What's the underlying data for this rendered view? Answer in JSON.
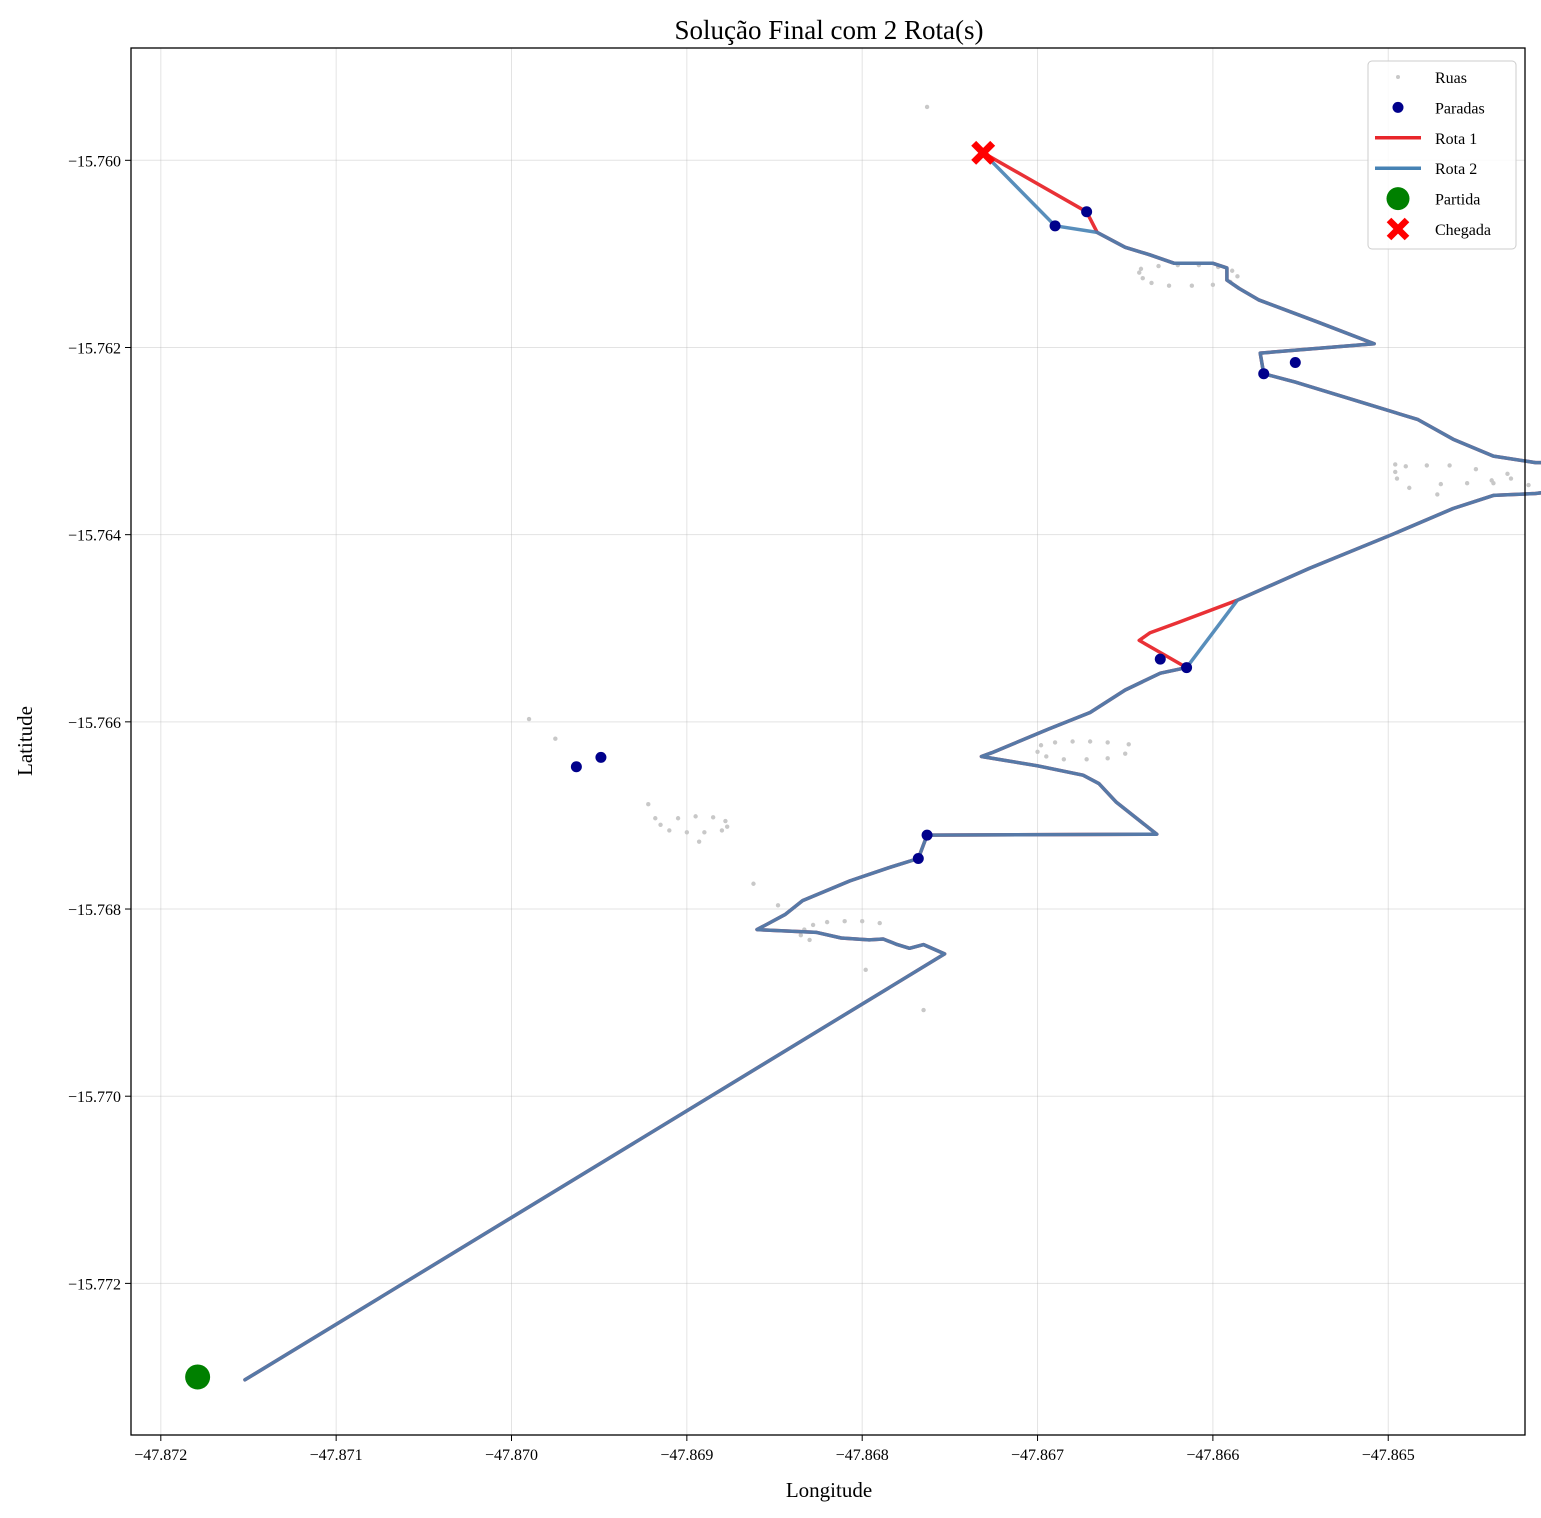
{
  "chart_data": {
    "type": "scatter",
    "title": "Solução Final com 2 Rota(s)",
    "xlabel": "Longitude",
    "ylabel": "Latitude",
    "xlim": [
      -47.87217,
      -47.86422
    ],
    "ylim": [
      -15.77362,
      -15.7588
    ],
    "xticks": [
      -47.872,
      -47.871,
      -47.87,
      -47.869,
      -47.868,
      -47.867,
      -47.866,
      -47.865
    ],
    "xtick_labels": [
      "−47.872",
      "−47.871",
      "−47.870",
      "−47.869",
      "−47.868",
      "−47.867",
      "−47.866",
      "−47.865"
    ],
    "yticks": [
      -15.76,
      -15.762,
      -15.764,
      -15.766,
      -15.768,
      -15.77,
      -15.772
    ],
    "ytick_labels": [
      "−15.760",
      "−15.762",
      "−15.764",
      "−15.766",
      "−15.768",
      "−15.770",
      "−15.772"
    ],
    "grid": true,
    "legend_position": "top-right",
    "legend": [
      {
        "label": "Ruas",
        "kind": "small-dot",
        "color": "#c8c8c8"
      },
      {
        "label": "Paradas",
        "kind": "dot",
        "color": "#00008b"
      },
      {
        "label": "Rota 1",
        "kind": "line",
        "color": "#e8262b"
      },
      {
        "label": "Rota 2",
        "kind": "line",
        "color": "#4682b4"
      },
      {
        "label": "Partida",
        "kind": "big-dot",
        "color": "#008000"
      },
      {
        "label": "Chegada",
        "kind": "x-marker",
        "color": "#ff0000"
      }
    ],
    "series": [
      {
        "name": "Ruas",
        "type": "scatter",
        "color": "#c8c8c8",
        "points": [
          [
            -47.86763,
            -15.75943
          ],
          [
            -47.86641,
            -15.76116
          ],
          [
            -47.86631,
            -15.76113
          ],
          [
            -47.8662,
            -15.76112
          ],
          [
            -47.86608,
            -15.76112
          ],
          [
            -47.86597,
            -15.76114
          ],
          [
            -47.86589,
            -15.76118
          ],
          [
            -47.86586,
            -15.76124
          ],
          [
            -47.8659,
            -15.7613
          ],
          [
            -47.866,
            -15.76133
          ],
          [
            -47.86612,
            -15.76134
          ],
          [
            -47.86625,
            -15.76134
          ],
          [
            -47.86635,
            -15.76131
          ],
          [
            -47.8664,
            -15.76126
          ],
          [
            -47.86642,
            -15.7612
          ],
          [
            -47.86496,
            -15.76325
          ],
          [
            -47.8649,
            -15.76327
          ],
          [
            -47.86478,
            -15.76326
          ],
          [
            -47.86465,
            -15.76326
          ],
          [
            -47.8645,
            -15.7633
          ],
          [
            -47.86432,
            -15.76335
          ],
          [
            -47.8643,
            -15.7634
          ],
          [
            -47.86455,
            -15.76345
          ],
          [
            -47.8647,
            -15.76346
          ],
          [
            -47.86488,
            -15.7635
          ],
          [
            -47.86495,
            -15.7634
          ],
          [
            -47.86496,
            -15.76333
          ],
          [
            -47.86472,
            -15.76357
          ],
          [
            -47.8644,
            -15.76345
          ],
          [
            -47.8642,
            -15.76347
          ],
          [
            -47.86405,
            -15.76345
          ],
          [
            -47.8638,
            -15.76342
          ],
          [
            -47.8699,
            -15.76597
          ],
          [
            -47.86975,
            -15.76618
          ],
          [
            -47.86698,
            -15.76625
          ],
          [
            -47.8669,
            -15.76622
          ],
          [
            -47.8668,
            -15.76621
          ],
          [
            -47.8667,
            -15.76621
          ],
          [
            -47.8666,
            -15.76622
          ],
          [
            -47.86648,
            -15.76624
          ],
          [
            -47.867,
            -15.76632
          ],
          [
            -47.86695,
            -15.76637
          ],
          [
            -47.86685,
            -15.7664
          ],
          [
            -47.86672,
            -15.7664
          ],
          [
            -47.8666,
            -15.76639
          ],
          [
            -47.8665,
            -15.76634
          ],
          [
            -47.86922,
            -15.76688
          ],
          [
            -47.86918,
            -15.76703
          ],
          [
            -47.86915,
            -15.7671
          ],
          [
            -47.86905,
            -15.76703
          ],
          [
            -47.86895,
            -15.76701
          ],
          [
            -47.86885,
            -15.76702
          ],
          [
            -47.86878,
            -15.76706
          ],
          [
            -47.86877,
            -15.76712
          ],
          [
            -47.8688,
            -15.76716
          ],
          [
            -47.8689,
            -15.76718
          ],
          [
            -47.869,
            -15.76718
          ],
          [
            -47.8691,
            -15.76716
          ],
          [
            -47.86893,
            -15.76728
          ],
          [
            -47.86862,
            -15.76773
          ],
          [
            -47.86848,
            -15.76796
          ],
          [
            -47.86833,
            -15.76822
          ],
          [
            -47.86828,
            -15.76817
          ],
          [
            -47.8682,
            -15.76814
          ],
          [
            -47.8681,
            -15.76813
          ],
          [
            -47.868,
            -15.76813
          ],
          [
            -47.8679,
            -15.76815
          ],
          [
            -47.86835,
            -15.76828
          ],
          [
            -47.8683,
            -15.76833
          ],
          [
            -47.86798,
            -15.76865
          ],
          [
            -47.86765,
            -15.76908
          ],
          [
            -47.86441,
            -15.76342
          ]
        ]
      },
      {
        "name": "Paradas",
        "type": "scatter",
        "color": "#00008b",
        "points": [
          [
            -47.86672,
            -15.76055
          ],
          [
            -47.8669,
            -15.7607
          ],
          [
            -47.86571,
            -15.76228
          ],
          [
            -47.86553,
            -15.76216
          ],
          [
            -47.8663,
            -15.76533
          ],
          [
            -47.86615,
            -15.76542
          ],
          [
            -47.86963,
            -15.76648
          ],
          [
            -47.86949,
            -15.76638
          ],
          [
            -47.86763,
            -15.76721
          ],
          [
            -47.86768,
            -15.76746
          ]
        ]
      },
      {
        "name": "Rota 1",
        "type": "line",
        "color": "#e8262b",
        "points": [
          [
            -47.86731,
            -15.75992
          ],
          [
            -47.86672,
            -15.76055
          ],
          [
            -47.86666,
            -15.76077
          ],
          [
            -47.8665,
            -15.76093
          ],
          [
            -47.86636,
            -15.76101
          ],
          [
            -47.86622,
            -15.7611
          ],
          [
            -47.866,
            -15.7611
          ],
          [
            -47.86592,
            -15.76115
          ],
          [
            -47.86592,
            -15.76128
          ],
          [
            -47.86585,
            -15.76137
          ],
          [
            -47.86574,
            -15.76149
          ],
          [
            -47.8654,
            -15.76173
          ],
          [
            -47.86508,
            -15.76196
          ],
          [
            -47.86573,
            -15.76206
          ],
          [
            -47.86571,
            -15.76228
          ],
          [
            -47.86553,
            -15.76237
          ],
          [
            -47.86518,
            -15.76257
          ],
          [
            -47.86483,
            -15.76277
          ],
          [
            -47.86463,
            -15.76298
          ],
          [
            -47.8644,
            -15.76316
          ],
          [
            -47.86416,
            -15.76323
          ],
          [
            -47.864,
            -15.76323
          ],
          [
            -47.86385,
            -15.7633
          ],
          [
            -47.8638,
            -15.7634
          ],
          [
            -47.86388,
            -15.7635
          ],
          [
            -47.86403,
            -15.76353
          ],
          [
            -47.86416,
            -15.76356
          ],
          [
            -47.8644,
            -15.76358
          ],
          [
            -47.86463,
            -15.76372
          ],
          [
            -47.86498,
            -15.764
          ],
          [
            -47.86545,
            -15.76436
          ],
          [
            -47.86586,
            -15.7647
          ],
          [
            -47.8662,
            -15.76494
          ],
          [
            -47.86636,
            -15.76505
          ],
          [
            -47.86642,
            -15.76513
          ],
          [
            -47.86615,
            -15.76542
          ],
          [
            -47.8663,
            -15.76548
          ],
          [
            -47.8665,
            -15.76566
          ],
          [
            -47.8667,
            -15.7659
          ],
          [
            -47.86694,
            -15.76608
          ],
          [
            -47.86726,
            -15.76633
          ],
          [
            -47.86732,
            -15.76637
          ],
          [
            -47.867,
            -15.76647
          ],
          [
            -47.86674,
            -15.76657
          ],
          [
            -47.86665,
            -15.76666
          ],
          [
            -47.86655,
            -15.76686
          ],
          [
            -47.86632,
            -15.7672
          ],
          [
            -47.86763,
            -15.76721
          ],
          [
            -47.86768,
            -15.76746
          ],
          [
            -47.86785,
            -15.76756
          ],
          [
            -47.86807,
            -15.7677
          ],
          [
            -47.86834,
            -15.76791
          ],
          [
            -47.86844,
            -15.76806
          ],
          [
            -47.86854,
            -15.76816
          ],
          [
            -47.8686,
            -15.76822
          ],
          [
            -47.86826,
            -15.76825
          ],
          [
            -47.86812,
            -15.76831
          ],
          [
            -47.86796,
            -15.76833
          ],
          [
            -47.86788,
            -15.76832
          ],
          [
            -47.8678,
            -15.76838
          ],
          [
            -47.86773,
            -15.76842
          ],
          [
            -47.86765,
            -15.76838
          ],
          [
            -47.86753,
            -15.76848
          ],
          [
            -47.87152,
            -15.77303
          ]
        ]
      },
      {
        "name": "Rota 2",
        "type": "line",
        "color": "#4682b4",
        "points": [
          [
            -47.86731,
            -15.75992
          ],
          [
            -47.8669,
            -15.7607
          ],
          [
            -47.86666,
            -15.76077
          ],
          [
            -47.8665,
            -15.76093
          ],
          [
            -47.86636,
            -15.76101
          ],
          [
            -47.86622,
            -15.7611
          ],
          [
            -47.866,
            -15.7611
          ],
          [
            -47.86592,
            -15.76115
          ],
          [
            -47.86592,
            -15.76128
          ],
          [
            -47.86585,
            -15.76137
          ],
          [
            -47.86574,
            -15.76149
          ],
          [
            -47.8654,
            -15.76173
          ],
          [
            -47.86508,
            -15.76196
          ],
          [
            -47.86573,
            -15.76206
          ],
          [
            -47.86571,
            -15.76228
          ],
          [
            -47.86553,
            -15.76237
          ],
          [
            -47.86518,
            -15.76257
          ],
          [
            -47.86483,
            -15.76277
          ],
          [
            -47.86463,
            -15.76298
          ],
          [
            -47.8644,
            -15.76316
          ],
          [
            -47.86416,
            -15.76323
          ],
          [
            -47.864,
            -15.76323
          ],
          [
            -47.86385,
            -15.7633
          ],
          [
            -47.8638,
            -15.7634
          ],
          [
            -47.86388,
            -15.7635
          ],
          [
            -47.86403,
            -15.76353
          ],
          [
            -47.86416,
            -15.76356
          ],
          [
            -47.8644,
            -15.76358
          ],
          [
            -47.86463,
            -15.76372
          ],
          [
            -47.86498,
            -15.764
          ],
          [
            -47.86545,
            -15.76436
          ],
          [
            -47.86586,
            -15.7647
          ],
          [
            -47.86615,
            -15.76542
          ],
          [
            -47.8663,
            -15.76548
          ],
          [
            -47.8665,
            -15.76566
          ],
          [
            -47.8667,
            -15.7659
          ],
          [
            -47.86694,
            -15.76608
          ],
          [
            -47.86726,
            -15.76633
          ],
          [
            -47.86732,
            -15.76637
          ],
          [
            -47.867,
            -15.76647
          ],
          [
            -47.86674,
            -15.76657
          ],
          [
            -47.86665,
            -15.76666
          ],
          [
            -47.86655,
            -15.76686
          ],
          [
            -47.86632,
            -15.7672
          ],
          [
            -47.86763,
            -15.76721
          ],
          [
            -47.86768,
            -15.76746
          ],
          [
            -47.86785,
            -15.76756
          ],
          [
            -47.86807,
            -15.7677
          ],
          [
            -47.86834,
            -15.76791
          ],
          [
            -47.86844,
            -15.76806
          ],
          [
            -47.86854,
            -15.76816
          ],
          [
            -47.8686,
            -15.76822
          ],
          [
            -47.86826,
            -15.76825
          ],
          [
            -47.86812,
            -15.76831
          ],
          [
            -47.86796,
            -15.76833
          ],
          [
            -47.86788,
            -15.76832
          ],
          [
            -47.8678,
            -15.76838
          ],
          [
            -47.86773,
            -15.76842
          ],
          [
            -47.86765,
            -15.76838
          ],
          [
            -47.86753,
            -15.76848
          ],
          [
            -47.87152,
            -15.77303
          ]
        ]
      },
      {
        "name": "Partida",
        "type": "scatter",
        "color": "#008000",
        "points": [
          [
            -47.87179,
            -15.773
          ]
        ]
      },
      {
        "name": "Chegada",
        "type": "scatter",
        "color": "#ff0000",
        "points": [
          [
            -47.86731,
            -15.75992
          ]
        ]
      }
    ]
  }
}
